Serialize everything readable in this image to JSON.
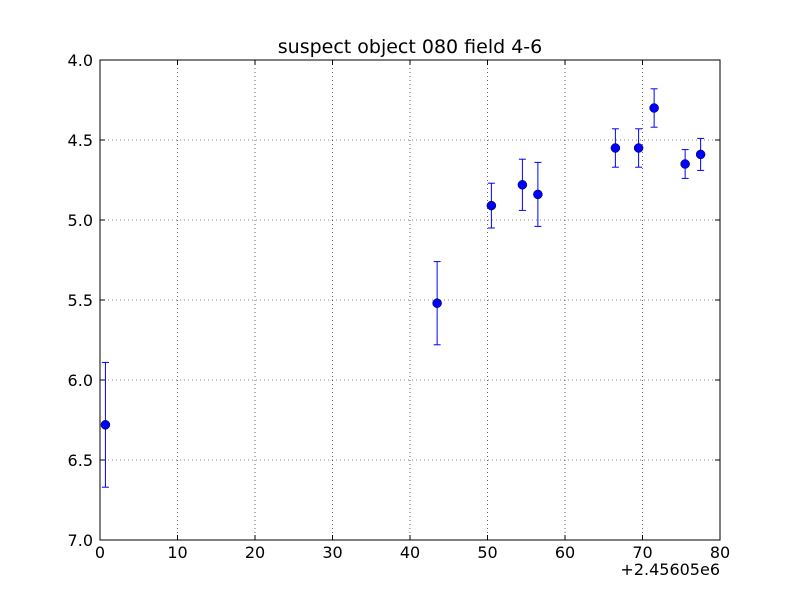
{
  "chart_data": {
    "type": "scatter",
    "title": "suspect object 080 field 4-6",
    "xlabel": "",
    "ylabel": "",
    "x_offset_label": "+2.45605e6",
    "xlim": [
      0,
      80
    ],
    "ylim": [
      4.0,
      7.0
    ],
    "y_inverted": true,
    "grid": true,
    "x_ticks": [
      0,
      10,
      20,
      30,
      40,
      50,
      60,
      70,
      80
    ],
    "x_tick_labels": [
      "0",
      "10",
      "20",
      "30",
      "40",
      "50",
      "60",
      "70",
      "80"
    ],
    "y_ticks": [
      4.0,
      4.5,
      5.0,
      5.5,
      6.0,
      6.5,
      7.0
    ],
    "y_tick_labels": [
      "4.0",
      "4.5",
      "5.0",
      "5.5",
      "6.0",
      "6.5",
      "7.0"
    ],
    "marker_color": "#0000ff",
    "series": [
      {
        "points": [
          {
            "x": 0.7,
            "y": 6.28,
            "err": 0.39
          },
          {
            "x": 43.5,
            "y": 5.52,
            "err": 0.26
          },
          {
            "x": 50.5,
            "y": 4.91,
            "err": 0.14
          },
          {
            "x": 54.5,
            "y": 4.78,
            "err": 0.16
          },
          {
            "x": 56.5,
            "y": 4.84,
            "err": 0.2
          },
          {
            "x": 66.5,
            "y": 4.55,
            "err": 0.12
          },
          {
            "x": 69.5,
            "y": 4.55,
            "err": 0.12
          },
          {
            "x": 71.5,
            "y": 4.3,
            "err": 0.12
          },
          {
            "x": 75.5,
            "y": 4.65,
            "err": 0.09
          },
          {
            "x": 77.5,
            "y": 4.59,
            "err": 0.1
          }
        ]
      }
    ]
  }
}
